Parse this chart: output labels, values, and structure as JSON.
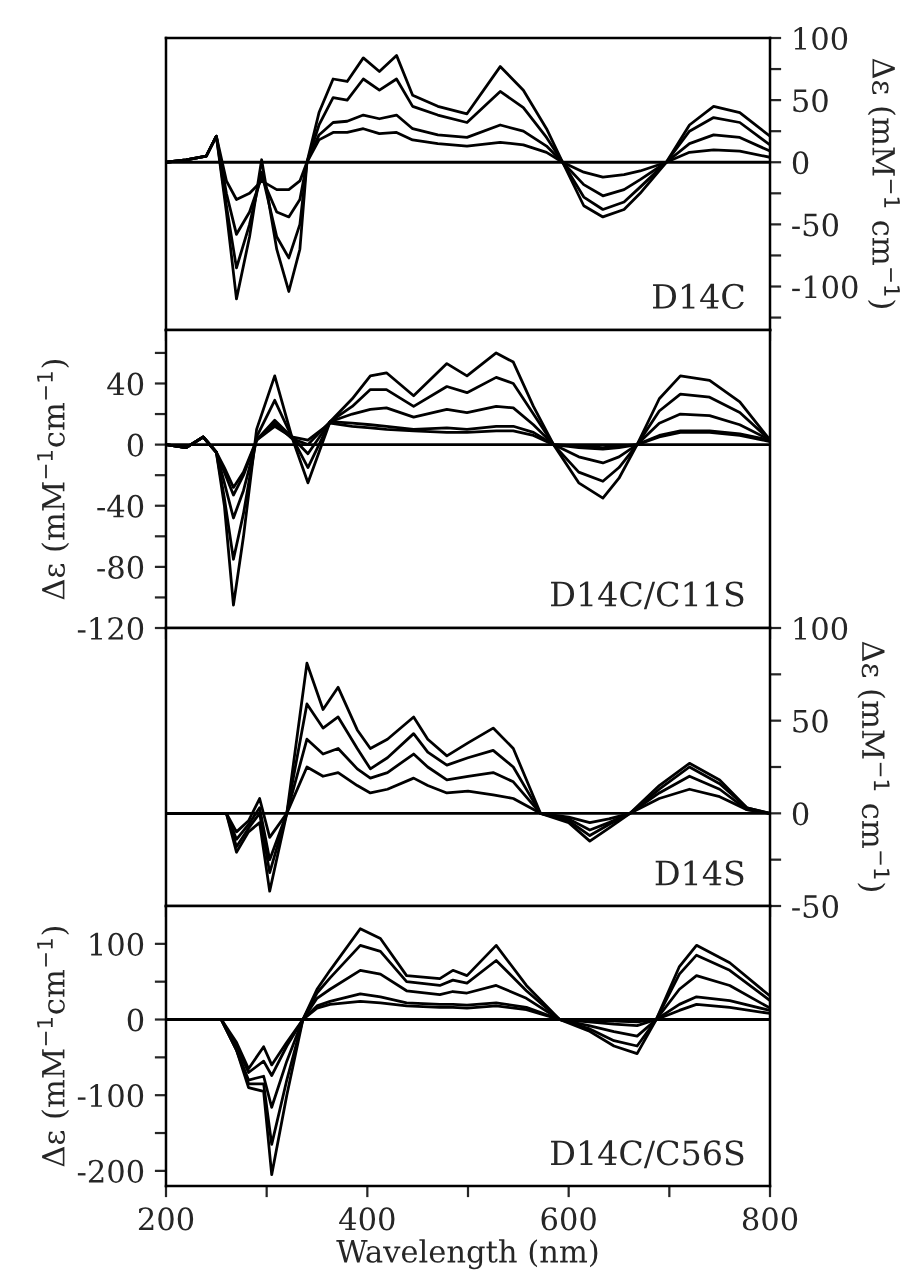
{
  "chart_data": [
    {
      "type": "line",
      "x": [
        200,
        220,
        240,
        250,
        260,
        270,
        283,
        295,
        310,
        322,
        333,
        340,
        352,
        366,
        380,
        396,
        412,
        429,
        445,
        470,
        499,
        532,
        555,
        578,
        594,
        615,
        634,
        655,
        671,
        697,
        720,
        744,
        770,
        800
      ],
      "xlim": [
        200,
        800
      ],
      "xticks": [
        {
          "value": 200,
          "label": null
        },
        {
          "value": 300,
          "label": null
        },
        {
          "value": 400,
          "label": null
        },
        {
          "value": 500,
          "label": null
        },
        {
          "value": 600,
          "label": null
        },
        {
          "value": 700,
          "label": null
        },
        {
          "value": 800,
          "label": null
        }
      ],
      "ylim": [
        -135,
        100
      ],
      "yticks": [
        {
          "value": -125,
          "label": null
        },
        -100,
        {
          "value": -75,
          "label": null
        },
        -50,
        {
          "value": -25,
          "label": null
        },
        0,
        {
          "value": 25,
          "label": null
        },
        50,
        {
          "value": 75,
          "label": null
        },
        100
      ],
      "ylabel": "Δε (mM$^{−1}$ cm$^{−1}$)",
      "tick_labels": "y",
      "annotations": [
        "D14C"
      ],
      "ref_lines": [
        {
          "axis": "y",
          "value": 0,
          "color": "#000000"
        }
      ],
      "series": [
        {
          "color": "#000000",
          "values": [
            0,
            2,
            5,
            21,
            -15,
            -30,
            -25,
            -15,
            -22,
            -22,
            -15,
            0,
            18,
            24,
            24,
            27,
            23,
            24,
            18,
            15,
            13,
            16,
            14,
            8,
            0,
            -8,
            -12,
            -10,
            -7,
            0,
            8,
            10,
            9,
            4
          ]
        },
        {
          "color": "#000000",
          "values": [
            0,
            2,
            5,
            21,
            -25,
            -58,
            -40,
            -12,
            -40,
            -44,
            -30,
            0,
            22,
            32,
            33,
            38,
            35,
            38,
            27,
            22,
            20,
            30,
            25,
            13,
            0,
            -18,
            -27,
            -22,
            -14,
            0,
            15,
            22,
            20,
            9
          ]
        },
        {
          "color": "#000000",
          "values": [
            0,
            2,
            5,
            21,
            -35,
            -85,
            -50,
            -8,
            -60,
            -77,
            -50,
            0,
            30,
            52,
            50,
            67,
            58,
            67,
            45,
            38,
            32,
            57,
            44,
            20,
            0,
            -28,
            -38,
            -32,
            -20,
            0,
            25,
            36,
            32,
            14
          ]
        },
        {
          "color": "#000000",
          "values": [
            0,
            2,
            5,
            21,
            -40,
            -110,
            -60,
            2,
            -70,
            -104,
            -70,
            0,
            40,
            67,
            65,
            84,
            73,
            86,
            54,
            45,
            39,
            77,
            58,
            27,
            0,
            -35,
            -44,
            -38,
            -25,
            0,
            30,
            45,
            40,
            21
          ]
        }
      ]
    },
    {
      "type": "line",
      "x": [
        200,
        220,
        237,
        250,
        258,
        267,
        277,
        290,
        308,
        325,
        341,
        363,
        385,
        403,
        419,
        446,
        479,
        499,
        528,
        545,
        565,
        585,
        610,
        634,
        650,
        668,
        690,
        711,
        740,
        770,
        800
      ],
      "xlim": [
        200,
        800
      ],
      "xticks": [
        {
          "value": 200,
          "label": null
        },
        {
          "value": 300,
          "label": null
        },
        {
          "value": 400,
          "label": null
        },
        {
          "value": 500,
          "label": null
        },
        {
          "value": 600,
          "label": null
        },
        {
          "value": 700,
          "label": null
        },
        {
          "value": 800,
          "label": null
        }
      ],
      "ylim": [
        -120,
        75
      ],
      "yticks": [
        -120,
        {
          "value": -100,
          "label": null
        },
        -80,
        {
          "value": -60,
          "label": null
        },
        -40,
        {
          "value": -20,
          "label": null
        },
        0,
        {
          "value": 20,
          "label": null
        },
        40,
        {
          "value": 60,
          "label": null
        }
      ],
      "ylabel": "Δε (mM$^{−1}$cm$^{−1}$)",
      "tick_labels": "y",
      "annotations": [
        "D14C/C11S"
      ],
      "ref_lines": [
        {
          "axis": "y",
          "value": 0,
          "color": "#000000"
        }
      ],
      "series": [
        {
          "color": "#000000",
          "values": [
            0,
            -2,
            5,
            -5,
            -15,
            -28,
            -18,
            3,
            12,
            5,
            3,
            14,
            12,
            11,
            10,
            9,
            8,
            8,
            9,
            9,
            6,
            0,
            -1,
            -2,
            -1,
            0,
            5,
            8,
            8,
            6,
            2
          ]
        },
        {
          "color": "#000000",
          "values": [
            0,
            -2,
            5,
            -5,
            -18,
            -33,
            -20,
            3,
            14,
            4,
            0,
            15,
            14,
            13,
            12,
            10,
            11,
            10,
            12,
            12,
            8,
            0,
            -2,
            -3,
            -2,
            0,
            6,
            9,
            9,
            7,
            3
          ]
        },
        {
          "color": "#000000",
          "values": [
            0,
            -2,
            5,
            -5,
            -25,
            -48,
            -30,
            3,
            16,
            5,
            -6,
            15,
            20,
            23,
            24,
            18,
            23,
            21,
            25,
            24,
            13,
            0,
            -8,
            -12,
            -8,
            0,
            14,
            20,
            19,
            13,
            3
          ]
        },
        {
          "color": "#000000",
          "values": [
            0,
            -2,
            5,
            -5,
            -35,
            -75,
            -45,
            5,
            29,
            5,
            -15,
            15,
            25,
            36,
            36,
            25,
            38,
            34,
            44,
            40,
            20,
            0,
            -18,
            -24,
            -15,
            0,
            22,
            33,
            31,
            21,
            3
          ]
        },
        {
          "color": "#000000",
          "values": [
            0,
            -2,
            5,
            -5,
            -40,
            -105,
            -60,
            10,
            45,
            5,
            -25,
            15,
            30,
            45,
            47,
            32,
            53,
            45,
            60,
            54,
            25,
            0,
            -25,
            -35,
            -22,
            0,
            30,
            45,
            42,
            28,
            3
          ]
        }
      ]
    },
    {
      "type": "line",
      "x": [
        200,
        230,
        260,
        270,
        282,
        293,
        303,
        320,
        340,
        356,
        371,
        390,
        403,
        420,
        446,
        460,
        479,
        500,
        525,
        545,
        572,
        600,
        621,
        640,
        661,
        690,
        720,
        750,
        777,
        800
      ],
      "xlim": [
        200,
        800
      ],
      "xticks": [
        {
          "value": 200,
          "label": null
        },
        {
          "value": 300,
          "label": null
        },
        {
          "value": 400,
          "label": null
        },
        {
          "value": 500,
          "label": null
        },
        {
          "value": 600,
          "label": null
        },
        {
          "value": 700,
          "label": null
        },
        {
          "value": 800,
          "label": null
        }
      ],
      "ylim": [
        -50,
        100
      ],
      "yticks": [
        -50,
        {
          "value": -25,
          "label": null
        },
        0,
        {
          "value": 25,
          "label": null
        },
        50,
        {
          "value": 75,
          "label": null
        },
        100
      ],
      "ylabel": "Δε (mM$^{−1}$ cm$^{−1}$)",
      "tick_labels": "y",
      "annotations": [
        "D14S"
      ],
      "ref_lines": [
        {
          "axis": "y",
          "value": 0,
          "color": "#000000"
        }
      ],
      "series": [
        {
          "color": "#000000",
          "values": [
            0,
            0,
            0,
            -10,
            -4,
            8,
            -13,
            0,
            25,
            20,
            22,
            15,
            11,
            13,
            19,
            15,
            11,
            12,
            10,
            8,
            0,
            -2,
            -5,
            -3,
            0,
            8,
            13,
            9,
            2,
            0
          ]
        },
        {
          "color": "#000000",
          "values": [
            0,
            0,
            0,
            -14,
            -6,
            3,
            -25,
            0,
            40,
            32,
            35,
            24,
            19,
            22,
            32,
            25,
            18,
            20,
            22,
            17,
            0,
            -3,
            -9,
            -5,
            0,
            11,
            20,
            13,
            2,
            0
          ]
        },
        {
          "color": "#000000",
          "values": [
            0,
            0,
            0,
            -18,
            -8,
            0,
            -32,
            0,
            59,
            46,
            52,
            35,
            24,
            30,
            43,
            33,
            26,
            30,
            34,
            25,
            0,
            -4,
            -12,
            -6,
            0,
            13,
            25,
            16,
            3,
            0
          ]
        },
        {
          "color": "#000000",
          "values": [
            0,
            0,
            0,
            -21,
            -10,
            -5,
            -42,
            0,
            81,
            56,
            68,
            45,
            35,
            40,
            52,
            40,
            31,
            38,
            46,
            35,
            0,
            -5,
            -15,
            -8,
            0,
            15,
            27,
            18,
            3,
            0
          ]
        }
      ]
    },
    {
      "type": "line",
      "x": [
        200,
        230,
        255,
        270,
        282,
        297,
        305,
        320,
        336,
        350,
        363,
        393,
        413,
        439,
        472,
        485,
        499,
        528,
        558,
        591,
        620,
        645,
        668,
        687,
        710,
        727,
        760,
        800
      ],
      "xlim": [
        200,
        800
      ],
      "xticks": [
        200,
        {
          "value": 300,
          "label": null
        },
        400,
        {
          "value": 500,
          "label": null
        },
        600,
        {
          "value": 700,
          "label": null
        },
        800
      ],
      "ylim": [
        -220,
        150
      ],
      "yticks": [
        -200,
        {
          "value": -150,
          "label": null
        },
        -100,
        {
          "value": -50,
          "label": null
        },
        0,
        {
          "value": 50,
          "label": null
        },
        100
      ],
      "xlabel": "Wavelength (nm)",
      "ylabel": "Δε (mM$^{−1}$cm$^{−1}$)",
      "annotations": [
        "D14C/C56S"
      ],
      "ref_lines": [
        {
          "axis": "y",
          "value": 0,
          "color": "#000000"
        }
      ],
      "series": [
        {
          "color": "#000000",
          "values": [
            0,
            0,
            0,
            -30,
            -65,
            -36,
            -60,
            -30,
            0,
            15,
            20,
            24,
            22,
            18,
            16,
            16,
            15,
            18,
            13,
            0,
            -1,
            -2,
            -3,
            0,
            12,
            20,
            16,
            8
          ]
        },
        {
          "color": "#000000",
          "values": [
            0,
            0,
            0,
            -35,
            -70,
            -55,
            -74,
            -35,
            0,
            18,
            24,
            34,
            30,
            22,
            20,
            20,
            19,
            22,
            16,
            0,
            -3,
            -6,
            -8,
            0,
            20,
            30,
            25,
            12
          ]
        },
        {
          "color": "#000000",
          "values": [
            0,
            0,
            0,
            -40,
            -80,
            -75,
            -116,
            -55,
            0,
            28,
            40,
            65,
            60,
            38,
            33,
            37,
            35,
            45,
            28,
            0,
            -8,
            -16,
            -22,
            0,
            40,
            58,
            45,
            15
          ]
        },
        {
          "color": "#000000",
          "values": [
            0,
            0,
            0,
            -40,
            -85,
            -85,
            -165,
            -80,
            0,
            35,
            55,
            98,
            90,
            50,
            45,
            52,
            48,
            78,
            38,
            0,
            -12,
            -28,
            -35,
            0,
            60,
            85,
            65,
            25
          ]
        },
        {
          "color": "#000000",
          "values": [
            0,
            0,
            0,
            -40,
            -90,
            -95,
            -205,
            -100,
            0,
            40,
            65,
            120,
            107,
            58,
            54,
            65,
            58,
            98,
            45,
            0,
            -15,
            -35,
            -45,
            0,
            70,
            98,
            75,
            31
          ]
        }
      ]
    }
  ]
}
